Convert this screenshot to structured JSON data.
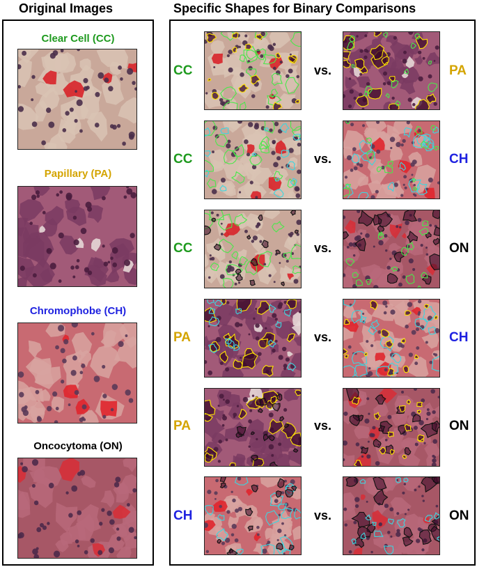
{
  "headings": {
    "left": "Original Images",
    "right": "Specific Shapes for Binary Comparisons"
  },
  "colors": {
    "CC": "#1e9a1e",
    "PA": "#d4a400",
    "CH": "#1f22e0",
    "ON": "#000000"
  },
  "originals": [
    {
      "label": "Clear Cell (CC)",
      "cls": "CC"
    },
    {
      "label": "Papillary (PA)",
      "cls": "PA"
    },
    {
      "label": "Chromophobe (CH)",
      "cls": "CH"
    },
    {
      "label": "Oncocytoma (ON)",
      "cls": "ON"
    }
  ],
  "vs_label": "vs.",
  "comparisons": [
    {
      "left": "CC",
      "right": "PA"
    },
    {
      "left": "CC",
      "right": "CH"
    },
    {
      "left": "CC",
      "right": "ON"
    },
    {
      "left": "PA",
      "right": "CH"
    },
    {
      "left": "PA",
      "right": "ON"
    },
    {
      "left": "CH",
      "right": "ON"
    }
  ]
}
